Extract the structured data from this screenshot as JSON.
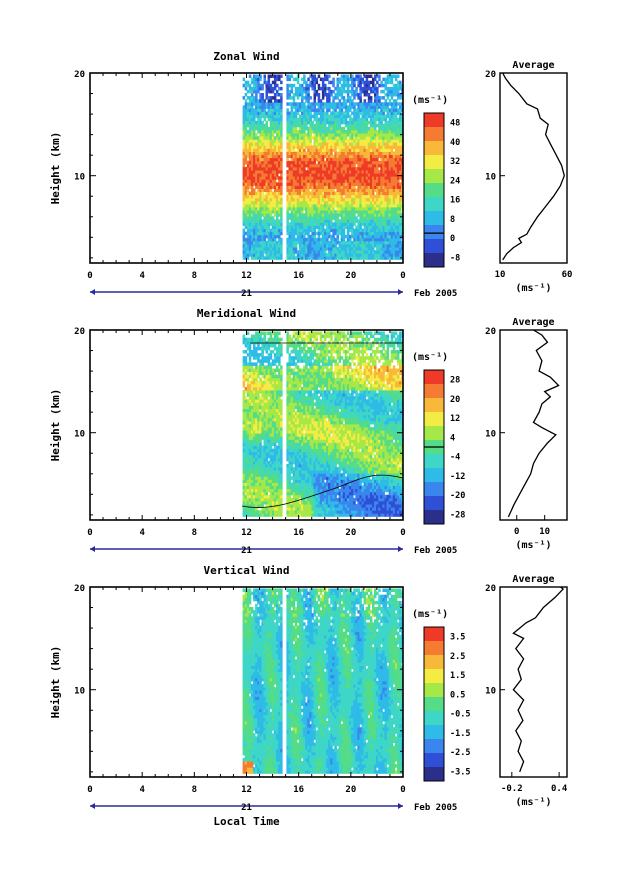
{
  "chart_data": [
    {
      "type": "heatmap",
      "title": "Zonal Wind",
      "ylabel": "Height (km)",
      "yticks": [
        "10",
        "20"
      ],
      "ylim": [
        1.5,
        20
      ],
      "xticks": [
        "0",
        "4",
        "8",
        "12",
        "16",
        "20",
        "0"
      ],
      "date_tick": "21",
      "date_label": "Feb 2005",
      "unit": "(ms⁻¹)",
      "colorbar_ticks": [
        "48",
        "40",
        "32",
        "24",
        "16",
        "8",
        "0",
        "-8"
      ],
      "data_start_hour": 11.7,
      "gap_hours": [
        14.7,
        15.0
      ],
      "profile": {
        "title": "Average",
        "xticks": [
          "10",
          "60"
        ],
        "xlim": [
          10,
          60
        ],
        "xlabel": "(ms⁻¹)",
        "yticks": [
          "10",
          "20"
        ],
        "points": [
          [
            12,
            1.8
          ],
          [
            15,
            2.4
          ],
          [
            20,
            3.0
          ],
          [
            26,
            3.5
          ],
          [
            24,
            3.9
          ],
          [
            30,
            4.3
          ],
          [
            33,
            5.0
          ],
          [
            38,
            6.0
          ],
          [
            44,
            7.0
          ],
          [
            50,
            8.0
          ],
          [
            55,
            9.0
          ],
          [
            58,
            10.0
          ],
          [
            56,
            11.0
          ],
          [
            52,
            12.0
          ],
          [
            48,
            13.0
          ],
          [
            44,
            14.0
          ],
          [
            46,
            15.0
          ],
          [
            40,
            15.6
          ],
          [
            38,
            16.5
          ],
          [
            30,
            17.0
          ],
          [
            24,
            18.0
          ],
          [
            18,
            18.8
          ],
          [
            14,
            19.5
          ],
          [
            12,
            20.0
          ]
        ]
      }
    },
    {
      "type": "heatmap",
      "title": "Meridional Wind",
      "ylabel": "Height (km)",
      "yticks": [
        "10",
        "20"
      ],
      "ylim": [
        1.5,
        20
      ],
      "xticks": [
        "0",
        "4",
        "8",
        "12",
        "16",
        "20",
        "0"
      ],
      "date_tick": "21",
      "date_label": "Feb 2005",
      "unit": "(ms⁻¹)",
      "colorbar_ticks": [
        "28",
        "20",
        "12",
        "4",
        "-4",
        "-12",
        "-20",
        "-28"
      ],
      "data_start_hour": 11.7,
      "gap_hours": [
        14.7,
        15.0
      ],
      "profile": {
        "title": "Average",
        "xticks": [
          "0",
          "10"
        ],
        "xlim": [
          -6,
          18
        ],
        "xlabel": "(ms⁻¹)",
        "yticks": [
          "10",
          "20"
        ],
        "points": [
          [
            -3,
            1.8
          ],
          [
            -1,
            3.0
          ],
          [
            1,
            4.0
          ],
          [
            3,
            5.0
          ],
          [
            5,
            6.0
          ],
          [
            6,
            7.0
          ],
          [
            8,
            8.0
          ],
          [
            11,
            9.0
          ],
          [
            14,
            9.8
          ],
          [
            9,
            10.5
          ],
          [
            6,
            11.0
          ],
          [
            8,
            12.0
          ],
          [
            9,
            12.8
          ],
          [
            12,
            13.5
          ],
          [
            10,
            14.0
          ],
          [
            15,
            14.6
          ],
          [
            12,
            15.4
          ],
          [
            8,
            16.0
          ],
          [
            9,
            17.0
          ],
          [
            7,
            18.0
          ],
          [
            11,
            18.8
          ],
          [
            9,
            19.5
          ],
          [
            6,
            20.0
          ]
        ]
      }
    },
    {
      "type": "heatmap",
      "title": "Vertical Wind",
      "ylabel": "Height (km)",
      "yticks": [
        "10",
        "20"
      ],
      "ylim": [
        1.5,
        20
      ],
      "xticks": [
        "0",
        "4",
        "8",
        "12",
        "16",
        "20",
        "0"
      ],
      "date_tick": "21",
      "date_label": "Feb 2005",
      "xlabel": "Local Time",
      "unit": "(ms⁻¹)",
      "colorbar_ticks": [
        "3.5",
        "2.5",
        "1.5",
        "0.5",
        "-0.5",
        "-1.5",
        "-2.5",
        "-3.5"
      ],
      "data_start_hour": 11.7,
      "gap_hours": [
        14.7,
        15.0
      ],
      "profile": {
        "title": "Average",
        "xticks": [
          "-0.2",
          "0.4"
        ],
        "xlim": [
          -0.35,
          0.5
        ],
        "xlabel": "(ms⁻¹)",
        "yticks": [
          "10",
          "20"
        ],
        "points": [
          [
            -0.1,
            2.0
          ],
          [
            -0.05,
            3.0
          ],
          [
            -0.12,
            4.0
          ],
          [
            -0.08,
            5.0
          ],
          [
            -0.15,
            6.0
          ],
          [
            -0.06,
            7.0
          ],
          [
            -0.12,
            8.0
          ],
          [
            -0.05,
            9.0
          ],
          [
            -0.18,
            10.0
          ],
          [
            -0.08,
            11.0
          ],
          [
            -0.12,
            12.0
          ],
          [
            -0.05,
            13.0
          ],
          [
            -0.15,
            14.0
          ],
          [
            -0.05,
            15.0
          ],
          [
            -0.18,
            15.5
          ],
          [
            -0.1,
            16.0
          ],
          [
            -0.02,
            16.5
          ],
          [
            0.1,
            17.0
          ],
          [
            0.2,
            18.0
          ],
          [
            0.35,
            19.0
          ],
          [
            0.45,
            19.8
          ],
          [
            0.42,
            20.0
          ]
        ]
      }
    }
  ]
}
